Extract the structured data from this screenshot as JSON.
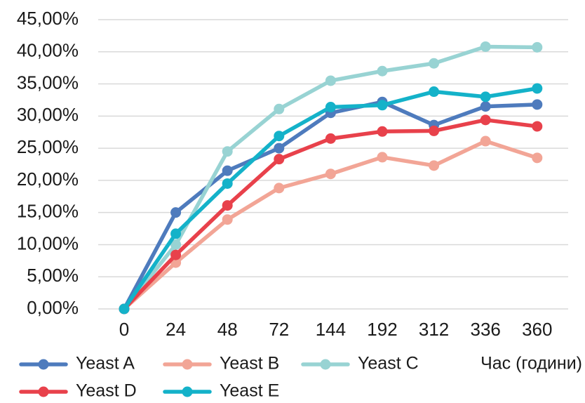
{
  "chart_data": {
    "type": "line",
    "title": "",
    "xlabel": "Час (години)",
    "ylabel": "",
    "categories": [
      "0",
      "24",
      "48",
      "72",
      "144",
      "192",
      "312",
      "336",
      "360"
    ],
    "y_ticks": [
      "0,00%",
      "5,00%",
      "10,00%",
      "15,00%",
      "20,00%",
      "25,00%",
      "30,00%",
      "35,00%",
      "40,00%",
      "45,00%"
    ],
    "ylim": [
      0,
      45
    ],
    "grid": true,
    "legend_position": "bottom",
    "series": [
      {
        "name": "Yeast A",
        "color": "#4E7BBD",
        "marker": true,
        "values": [
          0,
          15.0,
          21.5,
          25.0,
          30.5,
          32.2,
          28.6,
          31.5,
          31.8
        ]
      },
      {
        "name": "Yeast B",
        "color": "#F2A596",
        "marker": true,
        "values": [
          0,
          7.2,
          13.9,
          18.8,
          21.0,
          23.6,
          22.3,
          26.1,
          23.5
        ]
      },
      {
        "name": "Yeast C",
        "color": "#98D3D3",
        "marker": true,
        "values": [
          0,
          10.0,
          24.5,
          31.1,
          35.5,
          37.0,
          38.2,
          40.8,
          40.7
        ]
      },
      {
        "name": "Yeast D",
        "color": "#E8414B",
        "marker": true,
        "values": [
          0,
          8.4,
          16.1,
          23.3,
          26.5,
          27.6,
          27.7,
          29.4,
          28.4
        ]
      },
      {
        "name": "Yeast E",
        "color": "#14B2C9",
        "marker": true,
        "values": [
          0,
          11.7,
          19.5,
          26.9,
          31.4,
          31.7,
          33.8,
          33.0,
          34.3
        ]
      }
    ]
  }
}
